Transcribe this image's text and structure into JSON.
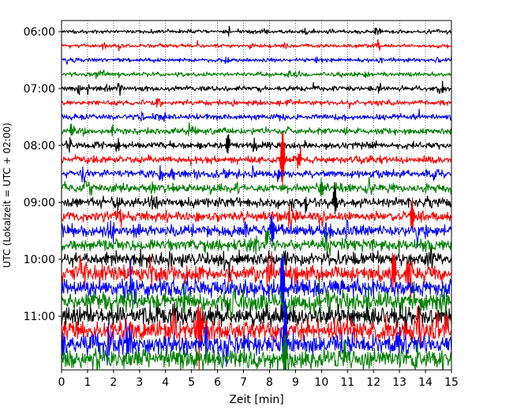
{
  "chart_data": {
    "type": "line",
    "xlabel": "Zeit  [min]",
    "ylabel": "UTC (Lokalzeit = UTC + 02:00)",
    "xlim": [
      0,
      15
    ],
    "x_ticks": [
      "0",
      "1",
      "2",
      "3",
      "4",
      "5",
      "6",
      "7",
      "8",
      "9",
      "10",
      "11",
      "12",
      "13",
      "14",
      "15"
    ],
    "y_tick_labels": [
      "06:00",
      "07:00",
      "08:00",
      "09:00",
      "10:00",
      "11:00"
    ],
    "trace_interval_minutes": 15,
    "first_trace": "06:00",
    "trace_count": 24,
    "trace_color_cycle": [
      "#000000",
      "#ff0000",
      "#0000ff",
      "#008000"
    ],
    "grid": "vertical dotted lines at each minute",
    "noise_amplitude_by_trace": [
      0.12,
      0.12,
      0.13,
      0.14,
      0.16,
      0.16,
      0.18,
      0.2,
      0.22,
      0.23,
      0.25,
      0.27,
      0.3,
      0.32,
      0.36,
      0.38,
      0.42,
      0.5,
      0.55,
      0.6,
      0.62,
      0.66,
      0.62,
      0.6
    ],
    "notable_spikes": [
      {
        "trace": 7,
        "x_min": 0.4,
        "height": 0.6
      },
      {
        "trace": 8,
        "x_min": 6.4,
        "height": 1.0
      },
      {
        "trace": 9,
        "x_min": 8.5,
        "height": 3.0
      },
      {
        "trace": 11,
        "x_min": 10.0,
        "height": 1.0
      },
      {
        "trace": 12,
        "x_min": 10.5,
        "height": 1.3
      },
      {
        "trace": 13,
        "x_min": 13.5,
        "height": 1.5
      },
      {
        "trace": 14,
        "x_min": 8.1,
        "height": 1.5
      },
      {
        "trace": 17,
        "x_min": 12.8,
        "height": 1.8
      },
      {
        "trace": 18,
        "x_min": 8.5,
        "height": 4.0
      },
      {
        "trace": 21,
        "x_min": 5.3,
        "height": 3.0
      },
      {
        "trace": 22,
        "x_min": 8.6,
        "height": 5.0
      },
      {
        "trace": 23,
        "x_min": 8.6,
        "height": 2.5
      }
    ]
  }
}
